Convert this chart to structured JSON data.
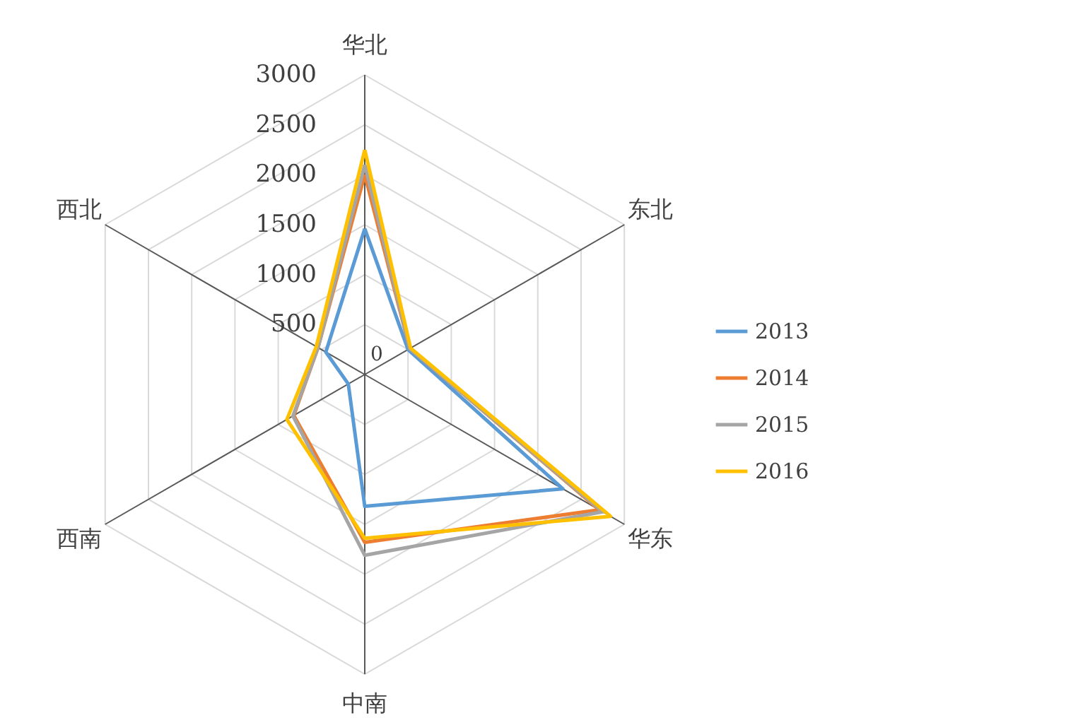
{
  "chart_data": {
    "type": "radar",
    "categories": [
      "华北",
      "东北",
      "华东",
      "中南",
      "西南",
      "西北"
    ],
    "series": [
      {
        "name": "2013",
        "color": "#5b9bd5",
        "values": [
          1460,
          500,
          2290,
          1320,
          190,
          450
        ]
      },
      {
        "name": "2014",
        "color": "#ed7d31",
        "values": [
          2000,
          520,
          2710,
          1680,
          820,
          540
        ]
      },
      {
        "name": "2015",
        "color": "#a5a5a5",
        "values": [
          2100,
          520,
          2750,
          1810,
          830,
          540
        ]
      },
      {
        "name": "2016",
        "color": "#ffc000",
        "values": [
          2250,
          530,
          2840,
          1640,
          900,
          560
        ]
      }
    ],
    "ylim": [
      0,
      3000
    ],
    "yticks": [
      0,
      500,
      1000,
      1500,
      2000,
      2500,
      3000
    ],
    "grid": true,
    "legend": "right"
  }
}
